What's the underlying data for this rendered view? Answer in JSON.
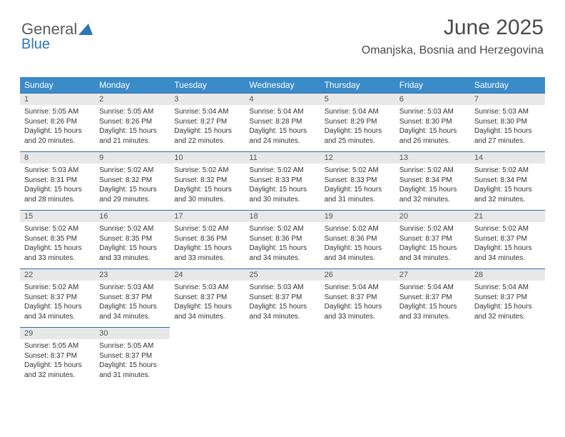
{
  "logo": {
    "line1": "General",
    "line2": "Blue"
  },
  "header": {
    "title": "June 2025",
    "location": "Omanjska, Bosnia and Herzegovina"
  },
  "colors": {
    "header_bg": "#3b8bc9",
    "daynum_bg": "#e8e8e8",
    "rule": "#2e6da4"
  },
  "dayNames": [
    "Sunday",
    "Monday",
    "Tuesday",
    "Wednesday",
    "Thursday",
    "Friday",
    "Saturday"
  ],
  "weeks": [
    [
      {
        "n": "1",
        "sr": "5:05 AM",
        "ss": "8:26 PM",
        "dl": "15 hours and 20 minutes."
      },
      {
        "n": "2",
        "sr": "5:05 AM",
        "ss": "8:26 PM",
        "dl": "15 hours and 21 minutes."
      },
      {
        "n": "3",
        "sr": "5:04 AM",
        "ss": "8:27 PM",
        "dl": "15 hours and 22 minutes."
      },
      {
        "n": "4",
        "sr": "5:04 AM",
        "ss": "8:28 PM",
        "dl": "15 hours and 24 minutes."
      },
      {
        "n": "5",
        "sr": "5:04 AM",
        "ss": "8:29 PM",
        "dl": "15 hours and 25 minutes."
      },
      {
        "n": "6",
        "sr": "5:03 AM",
        "ss": "8:30 PM",
        "dl": "15 hours and 26 minutes."
      },
      {
        "n": "7",
        "sr": "5:03 AM",
        "ss": "8:30 PM",
        "dl": "15 hours and 27 minutes."
      }
    ],
    [
      {
        "n": "8",
        "sr": "5:03 AM",
        "ss": "8:31 PM",
        "dl": "15 hours and 28 minutes."
      },
      {
        "n": "9",
        "sr": "5:02 AM",
        "ss": "8:32 PM",
        "dl": "15 hours and 29 minutes."
      },
      {
        "n": "10",
        "sr": "5:02 AM",
        "ss": "8:32 PM",
        "dl": "15 hours and 30 minutes."
      },
      {
        "n": "11",
        "sr": "5:02 AM",
        "ss": "8:33 PM",
        "dl": "15 hours and 30 minutes."
      },
      {
        "n": "12",
        "sr": "5:02 AM",
        "ss": "8:33 PM",
        "dl": "15 hours and 31 minutes."
      },
      {
        "n": "13",
        "sr": "5:02 AM",
        "ss": "8:34 PM",
        "dl": "15 hours and 32 minutes."
      },
      {
        "n": "14",
        "sr": "5:02 AM",
        "ss": "8:34 PM",
        "dl": "15 hours and 32 minutes."
      }
    ],
    [
      {
        "n": "15",
        "sr": "5:02 AM",
        "ss": "8:35 PM",
        "dl": "15 hours and 33 minutes."
      },
      {
        "n": "16",
        "sr": "5:02 AM",
        "ss": "8:35 PM",
        "dl": "15 hours and 33 minutes."
      },
      {
        "n": "17",
        "sr": "5:02 AM",
        "ss": "8:36 PM",
        "dl": "15 hours and 33 minutes."
      },
      {
        "n": "18",
        "sr": "5:02 AM",
        "ss": "8:36 PM",
        "dl": "15 hours and 34 minutes."
      },
      {
        "n": "19",
        "sr": "5:02 AM",
        "ss": "8:36 PM",
        "dl": "15 hours and 34 minutes."
      },
      {
        "n": "20",
        "sr": "5:02 AM",
        "ss": "8:37 PM",
        "dl": "15 hours and 34 minutes."
      },
      {
        "n": "21",
        "sr": "5:02 AM",
        "ss": "8:37 PM",
        "dl": "15 hours and 34 minutes."
      }
    ],
    [
      {
        "n": "22",
        "sr": "5:02 AM",
        "ss": "8:37 PM",
        "dl": "15 hours and 34 minutes."
      },
      {
        "n": "23",
        "sr": "5:03 AM",
        "ss": "8:37 PM",
        "dl": "15 hours and 34 minutes."
      },
      {
        "n": "24",
        "sr": "5:03 AM",
        "ss": "8:37 PM",
        "dl": "15 hours and 34 minutes."
      },
      {
        "n": "25",
        "sr": "5:03 AM",
        "ss": "8:37 PM",
        "dl": "15 hours and 34 minutes."
      },
      {
        "n": "26",
        "sr": "5:04 AM",
        "ss": "8:37 PM",
        "dl": "15 hours and 33 minutes."
      },
      {
        "n": "27",
        "sr": "5:04 AM",
        "ss": "8:37 PM",
        "dl": "15 hours and 33 minutes."
      },
      {
        "n": "28",
        "sr": "5:04 AM",
        "ss": "8:37 PM",
        "dl": "15 hours and 32 minutes."
      }
    ],
    [
      {
        "n": "29",
        "sr": "5:05 AM",
        "ss": "8:37 PM",
        "dl": "15 hours and 32 minutes."
      },
      {
        "n": "30",
        "sr": "5:05 AM",
        "ss": "8:37 PM",
        "dl": "15 hours and 31 minutes."
      },
      null,
      null,
      null,
      null,
      null
    ]
  ],
  "labels": {
    "sunrise": "Sunrise:",
    "sunset": "Sunset:",
    "daylight": "Daylight:"
  }
}
